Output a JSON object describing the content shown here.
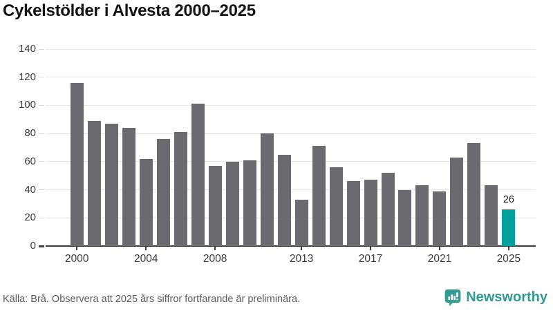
{
  "title": "Cykelstölder i Alvesta 2000–2025",
  "chart_data": {
    "type": "bar",
    "x": [
      2000,
      2001,
      2002,
      2003,
      2004,
      2005,
      2006,
      2007,
      2008,
      2009,
      2010,
      2011,
      2012,
      2013,
      2014,
      2015,
      2016,
      2017,
      2018,
      2019,
      2020,
      2021,
      2022,
      2023,
      2024,
      2025
    ],
    "values": [
      116,
      89,
      87,
      84,
      62,
      76,
      81,
      101,
      57,
      60,
      61,
      80,
      65,
      33,
      71,
      56,
      46,
      47,
      52,
      40,
      43,
      39,
      63,
      73,
      43,
      26
    ],
    "title": "Cykelstölder i Alvesta 2000–2025",
    "xlabel": "",
    "ylabel": "",
    "ylim": [
      0,
      140
    ],
    "yticks": [
      0,
      20,
      40,
      60,
      80,
      100,
      120,
      140
    ],
    "xtick_labels": [
      "2000",
      "2004",
      "2008",
      "2013",
      "2017",
      "2021",
      "2025"
    ],
    "grid": true,
    "legend": "none",
    "bar_color": "#6b6b6f",
    "highlight_year": 2025,
    "highlight_color": "#00a19a",
    "highlight_value_label": "26"
  },
  "footer": {
    "source": "Källa: Brå. Observera att 2025 års siffror fortfarande är preliminära.",
    "logo_text": "Newsworthy",
    "logo_color": "#2d9b93"
  }
}
